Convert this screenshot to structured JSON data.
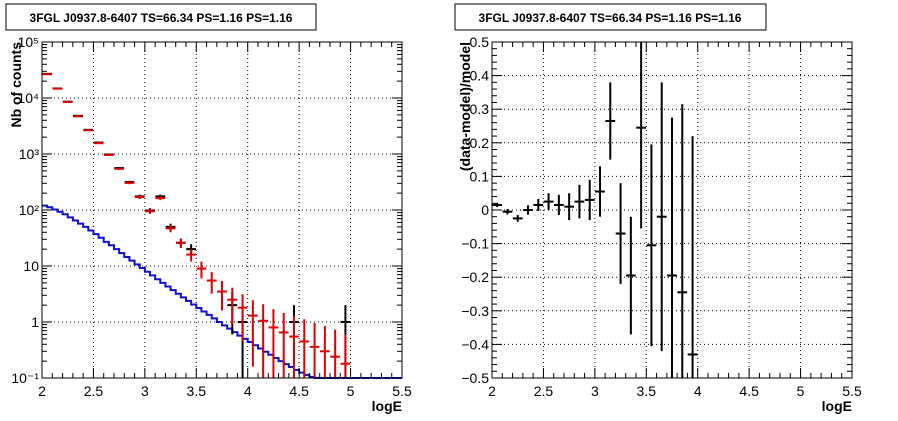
{
  "chart_data": [
    {
      "type": "scatter",
      "title": "3FGL J0937.8-6407 TS=66.34 PS=1.16 PS=1.16",
      "xlabel": "logE",
      "ylabel": "Nb of counts",
      "xlim": [
        2,
        5.5
      ],
      "ylim": [
        0.1,
        100000
      ],
      "yscale": "log",
      "grid": true,
      "x_ticks": [
        2,
        2.5,
        3,
        3.5,
        4,
        4.5,
        5,
        5.5
      ],
      "x_tick_labels": [
        "2",
        "2.5",
        "3",
        "3.5",
        "4",
        "4.5",
        "5",
        "5.5"
      ],
      "y_ticks": [
        0.1,
        1,
        10,
        100,
        1000,
        10000,
        100000
      ],
      "y_tick_labels": [
        "10⁻¹",
        "1",
        "10",
        "10²",
        "10³",
        "10⁴",
        "10⁵"
      ],
      "series": [
        {
          "kind": "step",
          "color": "#1010d0",
          "x_edges": [
            2.0,
            2.05,
            2.1,
            2.15,
            2.2,
            2.25,
            2.3,
            2.35,
            2.4,
            2.45,
            2.5,
            2.55,
            2.6,
            2.65,
            2.7,
            2.75,
            2.8,
            2.85,
            2.9,
            2.95,
            3.0,
            3.05,
            3.1,
            3.15,
            3.2,
            3.25,
            3.3,
            3.35,
            3.4,
            3.45,
            3.5,
            3.55,
            3.6,
            3.65,
            3.7,
            3.75,
            3.8,
            3.85,
            3.9,
            3.95,
            4.0,
            4.05,
            4.1,
            4.15,
            4.2,
            4.25,
            4.3,
            4.35,
            4.4,
            4.45,
            4.5,
            4.55,
            4.6,
            4.65,
            4.7,
            4.75,
            4.8,
            4.85,
            4.9,
            4.95,
            5.0,
            5.5
          ],
          "values": [
            120,
            112,
            102,
            93,
            84,
            74,
            65,
            57,
            50,
            43,
            37,
            32,
            27,
            23.5,
            20,
            17,
            14.5,
            12.5,
            10.7,
            9.2,
            7.9,
            6.8,
            5.8,
            5.0,
            4.3,
            3.7,
            3.2,
            2.75,
            2.38,
            2.05,
            1.78,
            1.54,
            1.34,
            1.16,
            1.0,
            0.87,
            0.76,
            0.66,
            0.57,
            0.5,
            0.44,
            0.385,
            0.337,
            0.295,
            0.26,
            0.228,
            0.2,
            0.177,
            0.157,
            0.14,
            0.125,
            0.113,
            0.104,
            0.1,
            0.1,
            0.1,
            0.1,
            0.1,
            0.1,
            0.1,
            0.1
          ]
        },
        {
          "kind": "errorbar",
          "color": "#000000",
          "x": [
            2.05,
            2.15,
            2.25,
            2.35,
            2.45,
            2.55,
            2.65,
            2.75,
            2.85,
            2.95,
            3.05,
            3.15,
            3.25,
            3.35,
            3.45,
            3.55,
            3.65,
            3.75,
            3.85,
            3.95,
            4.05,
            4.15,
            4.25,
            4.35,
            4.45,
            4.55,
            4.65,
            4.75,
            4.85,
            4.95
          ],
          "y": [
            27000,
            14800,
            8600,
            4800,
            2700,
            1600,
            980,
            560,
            315,
            175,
            98,
            175,
            50,
            26,
            20,
            8,
            5,
            3.5,
            2,
            1,
            1,
            1,
            1,
            1,
            1,
            1,
            1,
            1,
            1,
            1
          ],
          "yerr": [
            165,
            120,
            93,
            70,
            52,
            40,
            31,
            24,
            18,
            13,
            10,
            13,
            7,
            5,
            4.5,
            2.8,
            2.2,
            1.9,
            1.4,
            1,
            1,
            1,
            1,
            1,
            1,
            1,
            1,
            1,
            1,
            1
          ],
          "shown": [
            true,
            true,
            true,
            true,
            true,
            true,
            true,
            true,
            true,
            true,
            true,
            true,
            true,
            true,
            true,
            false,
            false,
            false,
            true,
            true,
            false,
            false,
            false,
            false,
            true,
            false,
            false,
            false,
            false,
            true
          ]
        },
        {
          "kind": "errorbar",
          "color": "#e00000",
          "x": [
            2.05,
            2.15,
            2.25,
            2.35,
            2.45,
            2.55,
            2.65,
            2.75,
            2.85,
            2.95,
            3.05,
            3.15,
            3.25,
            3.35,
            3.45,
            3.55,
            3.65,
            3.75,
            3.85,
            3.95,
            4.05,
            4.15,
            4.25,
            4.35,
            4.45,
            4.55,
            4.65,
            4.75,
            4.85,
            4.95
          ],
          "y": [
            26600,
            14700,
            8500,
            4700,
            2650,
            1560,
            960,
            545,
            305,
            170,
            95,
            163,
            47,
            26,
            16,
            9,
            5.5,
            3.5,
            2.5,
            1.8,
            1.3,
            1.05,
            0.8,
            0.65,
            0.55,
            0.45,
            0.36,
            0.3,
            0.24,
            0.18
          ],
          "yerr": [
            163,
            121,
            92,
            69,
            51,
            39,
            31,
            23,
            17,
            13,
            10,
            13,
            7,
            5,
            4,
            3,
            2.3,
            1.9,
            1.6,
            1.34,
            1.14,
            1.02,
            0.9,
            0.8,
            0.74,
            0.67,
            0.6,
            0.55,
            0.49,
            0.42
          ]
        }
      ]
    },
    {
      "type": "scatter",
      "title": "3FGL J0937.8-6407 TS=66.34 PS=1.16 PS=1.16",
      "xlabel": "logE",
      "ylabel": "(data-model)/model",
      "xlim": [
        2,
        5.5
      ],
      "ylim": [
        -0.5,
        0.5
      ],
      "grid": true,
      "x_ticks": [
        2,
        2.5,
        3,
        3.5,
        4,
        4.5,
        5,
        5.5
      ],
      "x_tick_labels": [
        "2",
        "2.5",
        "3",
        "3.5",
        "4",
        "4.5",
        "5",
        "5.5"
      ],
      "y_ticks": [
        -0.5,
        -0.4,
        -0.3,
        -0.2,
        -0.1,
        0,
        0.1,
        0.2,
        0.3,
        0.4,
        0.5
      ],
      "y_tick_labels": [
        "−0.5",
        "−0.4",
        "−0.3",
        "−0.2",
        "−0.1",
        "0",
        "0.1",
        "0.2",
        "0.3",
        "0.4",
        "0.5"
      ],
      "series": [
        {
          "kind": "errorbar",
          "color": "#000000",
          "x": [
            2.05,
            2.15,
            2.25,
            2.35,
            2.45,
            2.55,
            2.65,
            2.75,
            2.85,
            2.95,
            3.05,
            3.15,
            3.25,
            3.35,
            3.45,
            3.55,
            3.65,
            3.75,
            3.85,
            3.95
          ],
          "y": [
            0.015,
            -0.005,
            -0.025,
            0.0,
            0.015,
            0.025,
            0.015,
            0.01,
            0.025,
            0.03,
            0.055,
            0.265,
            -0.07,
            -0.195,
            0.245,
            -0.105,
            -0.02,
            -0.195,
            -0.245,
            -0.43
          ],
          "yerr": [
            0.006,
            0.008,
            0.01,
            0.014,
            0.018,
            0.025,
            0.03,
            0.04,
            0.05,
            0.06,
            0.075,
            0.115,
            0.15,
            0.175,
            0.3,
            0.3,
            0.4,
            0.47,
            0.56,
            0.65
          ]
        }
      ]
    }
  ]
}
